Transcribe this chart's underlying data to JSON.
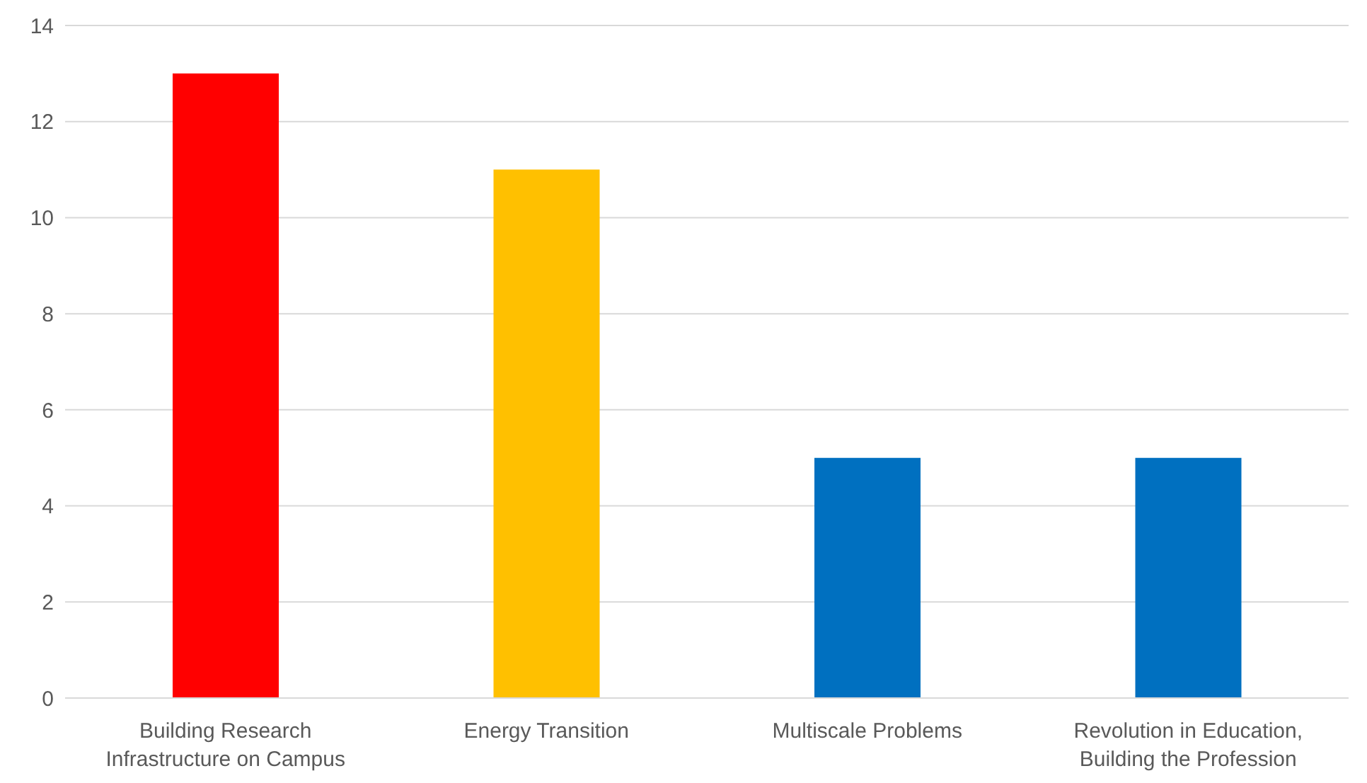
{
  "chart_data": {
    "type": "bar",
    "categories": [
      "Building Research Infrastructure on Campus",
      "Energy Transition",
      "Multiscale Problems",
      "Revolution in Education, Building the Profession"
    ],
    "values": [
      13,
      11,
      5,
      5
    ],
    "colors": [
      "#ff0000",
      "#ffc000",
      "#0070c0",
      "#0070c0"
    ],
    "ylim": [
      0,
      14
    ],
    "yticks": [
      0,
      2,
      4,
      6,
      8,
      10,
      12,
      14
    ],
    "grid": "y"
  }
}
